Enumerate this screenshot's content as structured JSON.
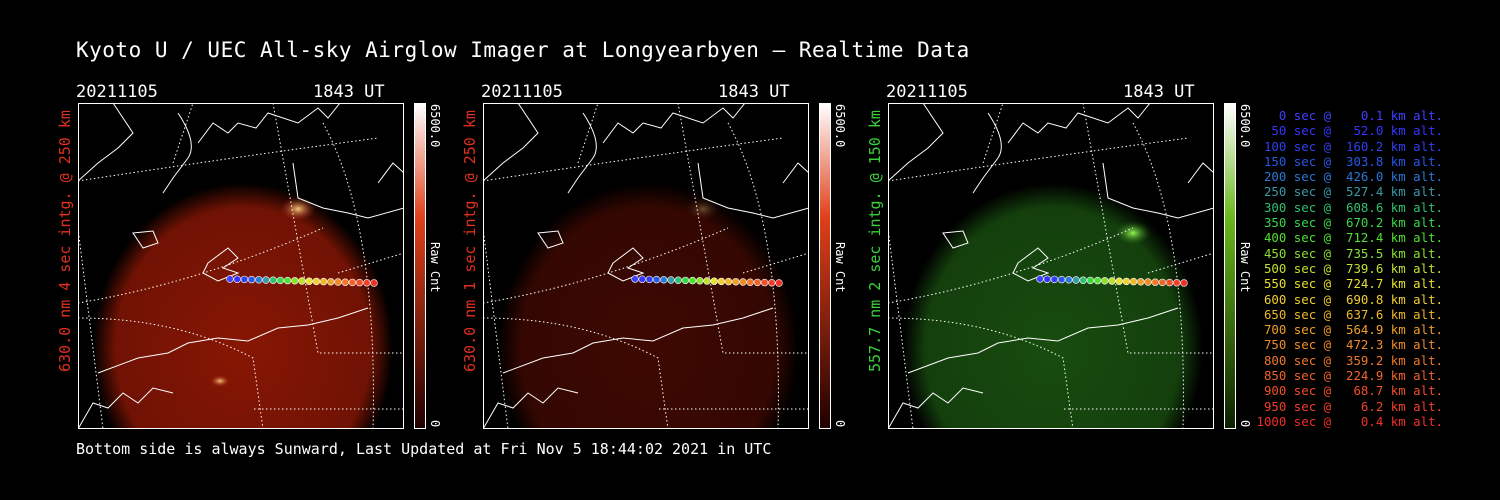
{
  "title": "Kyoto U / UEC All-sky Airglow Imager at Longyearbyen — Realtime Data",
  "footer": "Bottom side is always Sunward, Last Updated at Fri Nov  5 18:44:02 2021 in UTC",
  "panels": [
    {
      "date": "20211105",
      "time": "1843 UT",
      "side_label": "630.0 nm 4 sec intg. @ 250 km",
      "label_color": "#e0301e",
      "cb_max": "6500.0",
      "cb_min": "0",
      "cb_label": "Raw Cnt",
      "cb_top": "#ffffff",
      "cb_mid": "#e0401a",
      "cb_bottom": "#200000",
      "glow_color": "#a01a05"
    },
    {
      "date": "20211105",
      "time": "1843 UT",
      "side_label": "630.0 nm 1 sec intg. @ 250 km",
      "label_color": "#e0301e",
      "cb_max": "6500.0",
      "cb_min": "0",
      "cb_label": "Raw Cnt",
      "cb_top": "#ffffff",
      "cb_mid": "#e0401a",
      "cb_bottom": "#200000",
      "glow_color": "#4a0a02"
    },
    {
      "date": "20211105",
      "time": "1843 UT",
      "side_label": "557.7 nm 2 sec intg. @ 150 km",
      "label_color": "#3ad13a",
      "cb_max": "6500.0",
      "cb_min": "0",
      "cb_label": "Raw Cnt",
      "cb_top": "#ffffff",
      "cb_mid": "#6ab81a",
      "cb_bottom": "#0a2000",
      "glow_color": "#1c5a12"
    }
  ],
  "legend": [
    {
      "text": "   0 sec @    0.1 km alt.",
      "color": "#4040ff"
    },
    {
      "text": "  50 sec @   52.0 km alt.",
      "color": "#3535ff"
    },
    {
      "text": " 100 sec @  160.2 km alt.",
      "color": "#3040f0"
    },
    {
      "text": " 150 sec @  303.8 km alt.",
      "color": "#2858e8"
    },
    {
      "text": " 200 sec @  426.0 km alt.",
      "color": "#2a78d8"
    },
    {
      "text": " 250 sec @  527.4 km alt.",
      "color": "#3a9aa8"
    },
    {
      "text": " 300 sec @  608.6 km alt.",
      "color": "#30c070"
    },
    {
      "text": " 350 sec @  670.2 km alt.",
      "color": "#38d848"
    },
    {
      "text": " 400 sec @  712.4 km alt.",
      "color": "#50e030"
    },
    {
      "text": " 450 sec @  735.5 km alt.",
      "color": "#8ae030"
    },
    {
      "text": " 500 sec @  739.6 km alt.",
      "color": "#c0e030"
    },
    {
      "text": " 550 sec @  724.7 km alt.",
      "color": "#e8e030"
    },
    {
      "text": " 600 sec @  690.8 km alt.",
      "color": "#f0d030"
    },
    {
      "text": " 650 sec @  637.6 km alt.",
      "color": "#f0b828"
    },
    {
      "text": " 700 sec @  564.9 km alt.",
      "color": "#f0a028"
    },
    {
      "text": " 750 sec @  472.3 km alt.",
      "color": "#f08c28"
    },
    {
      "text": " 800 sec @  359.2 km alt.",
      "color": "#f07828"
    },
    {
      "text": " 850 sec @  224.9 km alt.",
      "color": "#f06428"
    },
    {
      "text": " 900 sec @   68.7 km alt.",
      "color": "#f05028"
    },
    {
      "text": " 950 sec @    6.2 km alt.",
      "color": "#f04028"
    },
    {
      "text": "1000 sec @    0.4 km alt.",
      "color": "#f03028"
    }
  ]
}
